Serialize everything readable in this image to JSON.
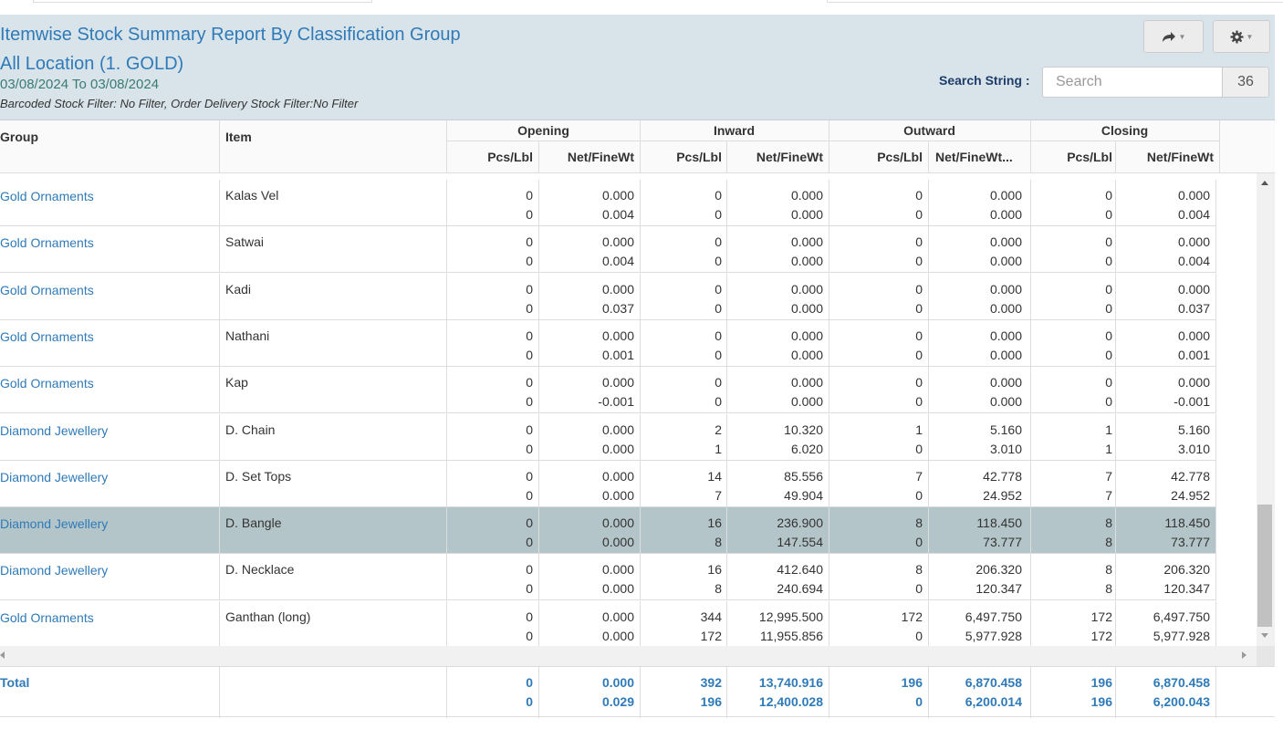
{
  "header": {
    "title": "Itemwise Stock Summary Report By Classification Group",
    "location": "All Location (1. GOLD)",
    "date_range": "03/08/2024 To 03/08/2024",
    "filters": "Barcoded Stock Filter: No Filter, Order Delivery Stock Filter:No Filter"
  },
  "toolbar": {
    "share_icon": "share-icon",
    "settings_icon": "gear-icon"
  },
  "search": {
    "label": "Search String :",
    "placeholder": "Search",
    "value": "",
    "count": "36"
  },
  "columns": {
    "group": "Group",
    "item": "Item",
    "sections": [
      "Opening",
      "Inward",
      "Outward",
      "Closing"
    ],
    "sub": [
      "Pcs/Lbl",
      "Net/FineWt",
      "Pcs/Lbl",
      "Net/FineWt",
      "Pcs/Lbl",
      "Net/FineWt...",
      "Pcs/Lbl",
      "Net/FineWt"
    ]
  },
  "rows": [
    {
      "group": "Gold Ornaments",
      "item": "Kalas Vel",
      "selected": false,
      "line1": [
        "0",
        "0.000",
        "0",
        "0.000",
        "0",
        "0.000",
        "0",
        "0.000"
      ],
      "line2": [
        "0",
        "0.004",
        "0",
        "0.000",
        "0",
        "0.000",
        "0",
        "0.004"
      ]
    },
    {
      "group": "Gold Ornaments",
      "item": "Satwai",
      "selected": false,
      "line1": [
        "0",
        "0.000",
        "0",
        "0.000",
        "0",
        "0.000",
        "0",
        "0.000"
      ],
      "line2": [
        "0",
        "0.004",
        "0",
        "0.000",
        "0",
        "0.000",
        "0",
        "0.004"
      ]
    },
    {
      "group": "Gold Ornaments",
      "item": "Kadi",
      "selected": false,
      "line1": [
        "0",
        "0.000",
        "0",
        "0.000",
        "0",
        "0.000",
        "0",
        "0.000"
      ],
      "line2": [
        "0",
        "0.037",
        "0",
        "0.000",
        "0",
        "0.000",
        "0",
        "0.037"
      ]
    },
    {
      "group": "Gold Ornaments",
      "item": "Nathani",
      "selected": false,
      "line1": [
        "0",
        "0.000",
        "0",
        "0.000",
        "0",
        "0.000",
        "0",
        "0.000"
      ],
      "line2": [
        "0",
        "0.001",
        "0",
        "0.000",
        "0",
        "0.000",
        "0",
        "0.001"
      ]
    },
    {
      "group": "Gold Ornaments",
      "item": "Kap",
      "selected": false,
      "line1": [
        "0",
        "0.000",
        "0",
        "0.000",
        "0",
        "0.000",
        "0",
        "0.000"
      ],
      "line2": [
        "0",
        "-0.001",
        "0",
        "0.000",
        "0",
        "0.000",
        "0",
        "-0.001"
      ]
    },
    {
      "group": "Diamond Jewellery",
      "item": "D. Chain",
      "selected": false,
      "line1": [
        "0",
        "0.000",
        "2",
        "10.320",
        "1",
        "5.160",
        "1",
        "5.160"
      ],
      "line2": [
        "0",
        "0.000",
        "1",
        "6.020",
        "0",
        "3.010",
        "1",
        "3.010"
      ]
    },
    {
      "group": "Diamond Jewellery",
      "item": "D. Set Tops",
      "selected": false,
      "line1": [
        "0",
        "0.000",
        "14",
        "85.556",
        "7",
        "42.778",
        "7",
        "42.778"
      ],
      "line2": [
        "0",
        "0.000",
        "7",
        "49.904",
        "0",
        "24.952",
        "7",
        "24.952"
      ]
    },
    {
      "group": "Diamond Jewellery",
      "item": "D. Bangle",
      "selected": true,
      "line1": [
        "0",
        "0.000",
        "16",
        "236.900",
        "8",
        "118.450",
        "8",
        "118.450"
      ],
      "line2": [
        "0",
        "0.000",
        "8",
        "147.554",
        "0",
        "73.777",
        "8",
        "73.777"
      ]
    },
    {
      "group": "Diamond Jewellery",
      "item": "D. Necklace",
      "selected": false,
      "line1": [
        "0",
        "0.000",
        "16",
        "412.640",
        "8",
        "206.320",
        "8",
        "206.320"
      ],
      "line2": [
        "0",
        "0.000",
        "8",
        "240.694",
        "0",
        "120.347",
        "8",
        "120.347"
      ]
    },
    {
      "group": "Gold Ornaments",
      "item": "Ganthan (long)",
      "selected": false,
      "line1": [
        "0",
        "0.000",
        "344",
        "12,995.500",
        "172",
        "6,497.750",
        "172",
        "6,497.750"
      ],
      "line2": [
        "0",
        "0.000",
        "172",
        "11,955.856",
        "0",
        "5,977.928",
        "172",
        "5,977.928"
      ]
    }
  ],
  "total": {
    "label": "Total",
    "line1": [
      "0",
      "0.000",
      "392",
      "13,740.916",
      "196",
      "6,870.458",
      "196",
      "6,870.458"
    ],
    "line2": [
      "0",
      "0.029",
      "196",
      "12,400.028",
      "0",
      "6,200.014",
      "196",
      "6,200.043"
    ]
  },
  "colors": {
    "header_bg": "#d9e4ea",
    "link": "#2f7ab8",
    "selected_row": "#b4c5c9"
  }
}
